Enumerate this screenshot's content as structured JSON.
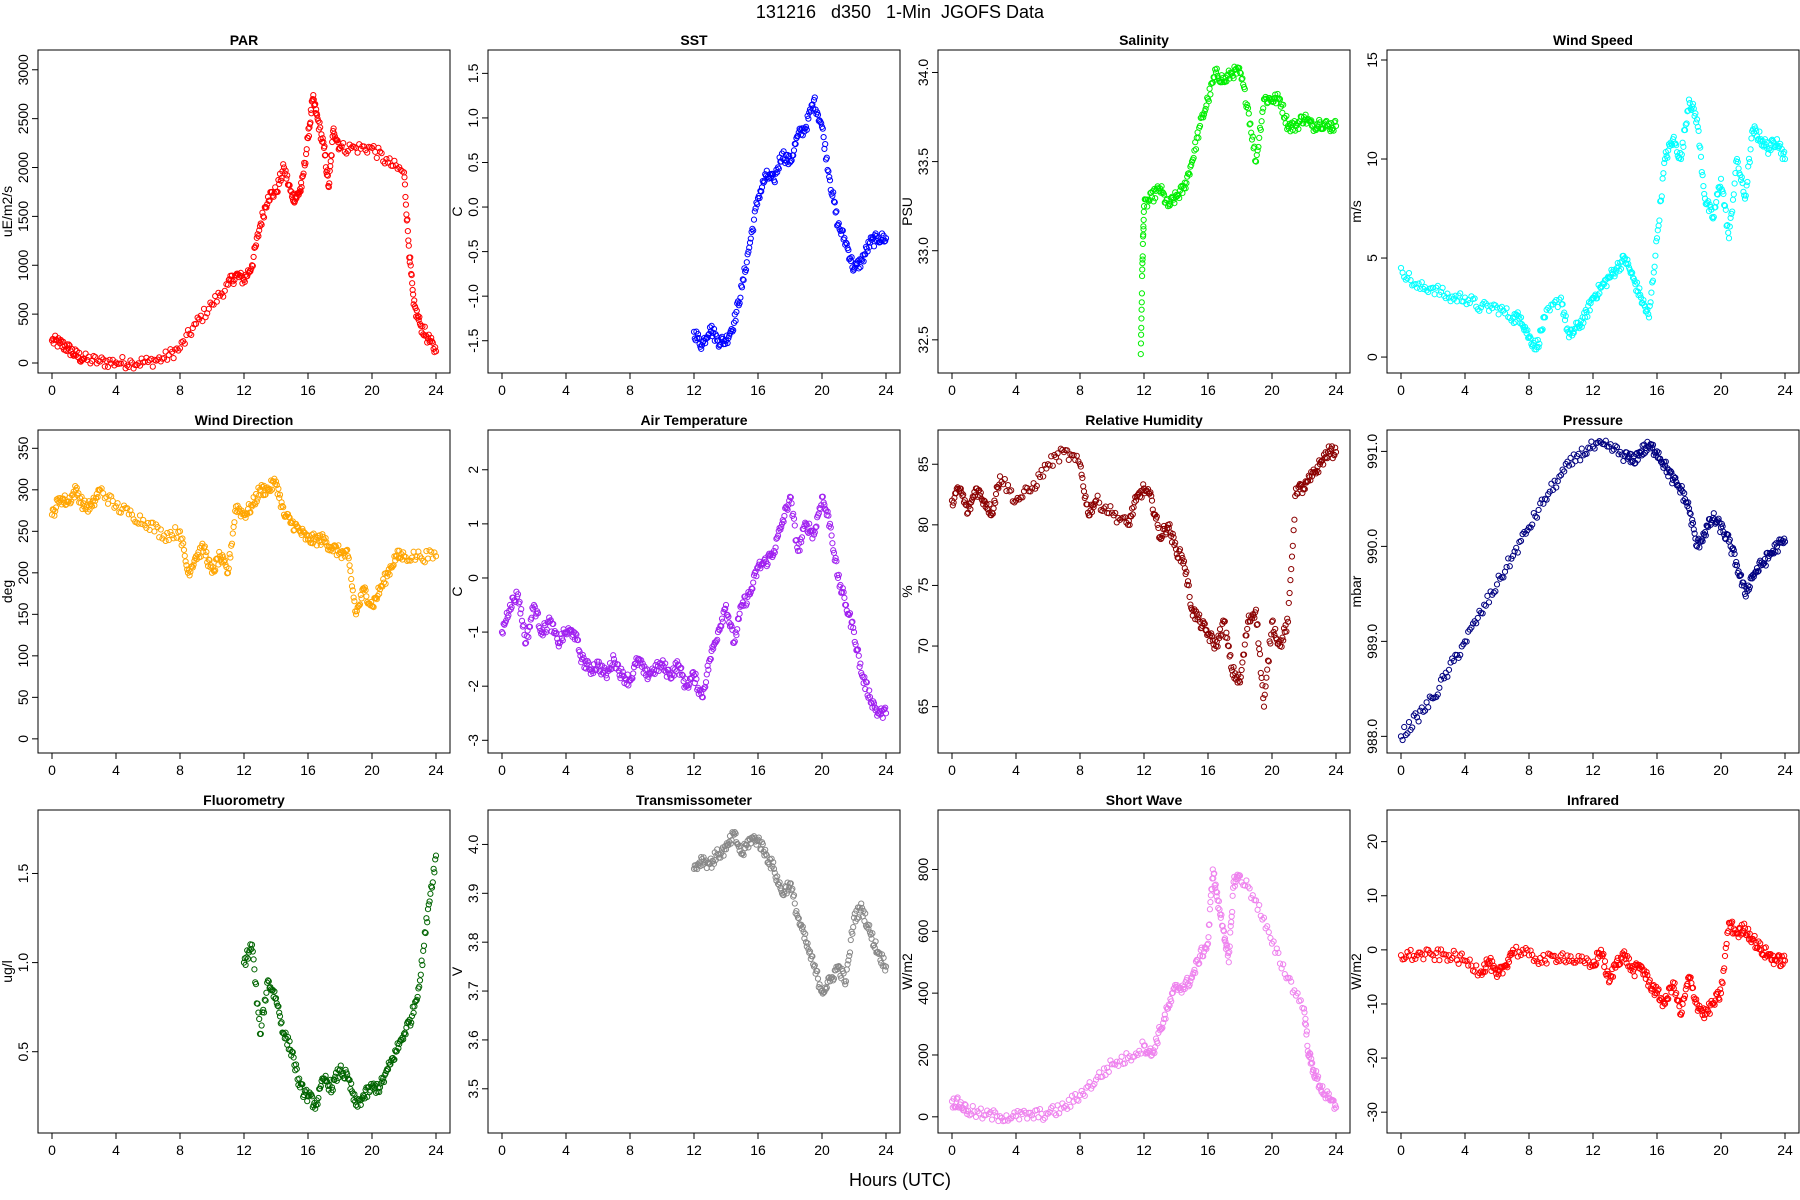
{
  "title": "131216   d350   1-Min  JGOFS Data",
  "xlabel": "Hours (UTC)",
  "x_ticks": [
    "0",
    "4",
    "8",
    "12",
    "16",
    "20",
    "24"
  ],
  "chart_data": [
    {
      "type": "scatter",
      "title": "PAR",
      "ylabel": "uE/m2/s",
      "color": "#ff0000",
      "xlim": [
        0,
        24
      ],
      "ylim": [
        0,
        3100
      ],
      "yticks": [
        0,
        500,
        1000,
        1500,
        2000,
        2500,
        3000
      ],
      "ytick_labels": [
        "0",
        "500",
        "1000",
        "1500",
        "2000",
        "2500",
        "3000"
      ],
      "x": [
        0,
        0.5,
        1,
        1.5,
        2,
        3,
        4,
        5,
        6,
        7,
        8,
        9,
        10,
        11,
        11.5,
        12,
        12.5,
        13,
        13.5,
        14,
        14.5,
        15,
        15.3,
        15.6,
        16,
        16.3,
        16.6,
        17,
        17.3,
        17.6,
        18,
        19,
        20,
        21,
        22,
        22.3,
        22.6,
        23,
        23.5,
        24
      ],
      "y": [
        230,
        200,
        150,
        80,
        40,
        15,
        5,
        5,
        10,
        50,
        150,
        400,
        600,
        800,
        900,
        850,
        1000,
        1400,
        1700,
        1750,
        2000,
        1700,
        1700,
        1800,
        2300,
        2700,
        2500,
        2200,
        1800,
        2400,
        2200,
        2200,
        2200,
        2050,
        1950,
        1200,
        600,
        400,
        250,
        120
      ]
    },
    {
      "type": "scatter",
      "title": "SST",
      "ylabel": "C",
      "color": "#0000ff",
      "xlim": [
        0,
        24
      ],
      "ylim": [
        -1.75,
        1.65
      ],
      "yticks": [
        -1.5,
        -1,
        -0.5,
        0,
        0.5,
        1,
        1.5
      ],
      "ytick_labels": [
        "-1.5",
        "-1.0",
        "-0.5",
        "0.0",
        "0.5",
        "1.0",
        "1.5"
      ],
      "x": [
        12,
        12.5,
        13,
        13.5,
        14,
        14.5,
        15,
        15.5,
        16,
        16.5,
        17,
        17.5,
        18,
        18.5,
        19,
        19.5,
        20,
        20.5,
        21,
        21.5,
        22,
        22.5,
        23,
        23.5,
        24
      ],
      "y": [
        -1.4,
        -1.55,
        -1.35,
        -1.5,
        -1.5,
        -1.3,
        -0.9,
        -0.4,
        0.1,
        0.35,
        0.3,
        0.6,
        0.5,
        0.8,
        0.9,
        1.2,
        0.9,
        0.3,
        -0.2,
        -0.4,
        -0.7,
        -0.6,
        -0.4,
        -0.35,
        -0.35
      ]
    },
    {
      "type": "scatter",
      "title": "Salinity",
      "ylabel": "PSU",
      "color": "#00ee00",
      "xlim": [
        0,
        24
      ],
      "ylim": [
        32.37,
        34.07
      ],
      "yticks": [
        32.5,
        33,
        33.5,
        34
      ],
      "ytick_labels": [
        "32.5",
        "33.0",
        "33.5",
        "34.0"
      ],
      "x": [
        11.8,
        11.9,
        12,
        12.5,
        13,
        13.5,
        14,
        14.5,
        15,
        15.5,
        16,
        16.5,
        17,
        17.5,
        18,
        18.5,
        19,
        19.5,
        20,
        20.5,
        21,
        21.5,
        22,
        22.5,
        23,
        23.5,
        24
      ],
      "y": [
        32.42,
        32.93,
        33.25,
        33.3,
        33.35,
        33.25,
        33.3,
        33.35,
        33.5,
        33.7,
        33.85,
        34.0,
        33.95,
        34.0,
        34.0,
        33.8,
        33.5,
        33.85,
        33.85,
        33.85,
        33.7,
        33.7,
        33.75,
        33.7,
        33.72,
        33.7,
        33.7
      ]
    },
    {
      "type": "scatter",
      "title": "Wind Speed",
      "ylabel": "m/s",
      "color": "#00ffff",
      "xlim": [
        0,
        24
      ],
      "ylim": [
        -0.3,
        15
      ],
      "yticks": [
        0,
        5,
        10,
        15
      ],
      "ytick_labels": [
        "0",
        "5",
        "10",
        "15"
      ],
      "x": [
        0,
        1,
        2,
        3,
        4,
        5,
        6,
        7,
        7.5,
        8,
        8.5,
        9,
        10,
        10.5,
        11,
        11.5,
        12,
        12.5,
        13,
        13.5,
        14,
        14.5,
        15,
        15.5,
        16,
        16.5,
        17,
        17.5,
        18,
        18.5,
        19,
        19.5,
        20,
        20.5,
        21,
        21.5,
        22,
        22.5,
        23,
        23.5,
        24
      ],
      "y": [
        4.5,
        3.5,
        3.5,
        3,
        3,
        2.5,
        2.5,
        2,
        2,
        1,
        0.5,
        2,
        3,
        1,
        1.5,
        2,
        3,
        3.5,
        4,
        4.5,
        5,
        4,
        3,
        2,
        6,
        10,
        11,
        10,
        13,
        12,
        8,
        7,
        9,
        6,
        10,
        8,
        11.5,
        11,
        10.5,
        11,
        10
      ]
    },
    {
      "type": "scatter",
      "title": "Wind Direction",
      "ylabel": "deg",
      "color": "#ffa500",
      "xlim": [
        0,
        24
      ],
      "ylim": [
        -5,
        360
      ],
      "yticks": [
        0,
        50,
        100,
        150,
        200,
        250,
        300,
        350
      ],
      "ytick_labels": [
        "0",
        "50",
        "100",
        "150",
        "200",
        "250",
        "300",
        "350"
      ],
      "x": [
        0,
        0.5,
        1,
        1.5,
        2,
        2.5,
        3,
        4,
        5,
        6,
        7,
        8,
        8.5,
        9,
        9.5,
        10,
        10.5,
        11,
        11.5,
        12,
        12.5,
        13,
        13.5,
        14,
        14.5,
        15,
        15.5,
        16,
        16.5,
        17,
        17.5,
        18,
        18.5,
        19,
        19.5,
        20,
        20.5,
        21,
        21.5,
        22,
        23,
        24
      ],
      "y": [
        270,
        290,
        285,
        300,
        280,
        280,
        300,
        280,
        270,
        260,
        245,
        250,
        200,
        220,
        230,
        200,
        220,
        200,
        280,
        270,
        280,
        300,
        300,
        310,
        270,
        260,
        250,
        240,
        240,
        240,
        230,
        225,
        220,
        150,
        180,
        160,
        180,
        200,
        220,
        220,
        220,
        220
      ]
    },
    {
      "type": "scatter",
      "title": "Air Temperature",
      "ylabel": "C",
      "color": "#a020f0",
      "xlim": [
        0,
        24
      ],
      "ylim": [
        -3.05,
        2.55
      ],
      "yticks": [
        -3,
        -2,
        -1,
        0,
        1,
        2
      ],
      "ytick_labels": [
        "-3",
        "-2",
        "-1",
        "0",
        "1",
        "2"
      ],
      "x": [
        0,
        0.5,
        1,
        1.5,
        2,
        2.5,
        3,
        3.5,
        4,
        4.5,
        5,
        5.5,
        6,
        6.5,
        7,
        7.5,
        8,
        8.5,
        9,
        9.5,
        10,
        10.5,
        11,
        11.5,
        12,
        12.5,
        13,
        13.5,
        14,
        14.5,
        15,
        15.5,
        16,
        16.5,
        17,
        17.5,
        18,
        18.5,
        19,
        19.5,
        20,
        20.5,
        21,
        21.5,
        22,
        22.5,
        23,
        23.5,
        24
      ],
      "y": [
        -1,
        -0.5,
        -0.3,
        -1.2,
        -0.5,
        -1,
        -0.8,
        -1.2,
        -1,
        -1,
        -1.5,
        -1.7,
        -1.6,
        -1.8,
        -1.5,
        -1.8,
        -1.9,
        -1.5,
        -1.8,
        -1.7,
        -1.6,
        -1.8,
        -1.6,
        -2,
        -1.8,
        -2.2,
        -1.5,
        -1,
        -0.5,
        -1.2,
        -0.5,
        -0.3,
        0.2,
        0.3,
        0.5,
        1,
        1.5,
        0.5,
        1,
        0.8,
        1.5,
        1,
        0,
        -0.5,
        -1,
        -1.8,
        -2.2,
        -2.5,
        -2.5
      ]
    },
    {
      "type": "scatter",
      "title": "Relative Humidity",
      "ylabel": "%",
      "color": "#8b0000",
      "xlim": [
        0,
        24
      ],
      "ylim": [
        62,
        87
      ],
      "yticks": [
        65,
        70,
        75,
        80,
        85
      ],
      "ytick_labels": [
        "65",
        "70",
        "75",
        "80",
        "85"
      ],
      "x": [
        0,
        0.5,
        1,
        1.5,
        2,
        2.5,
        3,
        4,
        5,
        6,
        7,
        8,
        8.5,
        9,
        10,
        11,
        11.5,
        12,
        12.5,
        13,
        13.5,
        14,
        14.5,
        15,
        15.5,
        16,
        16.5,
        17,
        17.5,
        18,
        18.5,
        19,
        19.5,
        20,
        20.5,
        21,
        21.5,
        22,
        22.5,
        23,
        23.5,
        24
      ],
      "y": [
        82,
        83,
        81,
        83,
        82,
        81,
        84,
        82,
        83,
        85,
        86,
        85,
        81,
        82,
        81,
        80,
        82,
        83,
        82,
        79,
        80,
        78,
        77,
        73,
        72,
        71,
        70,
        72,
        68,
        67,
        72,
        73,
        65,
        72,
        70,
        72,
        83,
        83,
        84,
        85,
        86,
        86
      ]
    },
    {
      "type": "scatter",
      "title": "Pressure",
      "ylabel": "mbar",
      "color": "#000080",
      "xlim": [
        0,
        24
      ],
      "ylim": [
        987.93,
        991.12
      ],
      "yticks": [
        988,
        989,
        990,
        991
      ],
      "ytick_labels": [
        "988.0",
        "989.0",
        "990.0",
        "991.0"
      ],
      "x": [
        0,
        1,
        2,
        3,
        4,
        5,
        6,
        7,
        8,
        9,
        10,
        11,
        12,
        13,
        14,
        14.5,
        15,
        15.5,
        16,
        16.5,
        17,
        17.5,
        18,
        18.5,
        19,
        19.5,
        20,
        20.5,
        21,
        21.5,
        22,
        22.5,
        23,
        23.5,
        24
      ],
      "y": [
        988.0,
        988.2,
        988.4,
        988.7,
        989.0,
        989.3,
        989.6,
        989.9,
        990.2,
        990.5,
        990.75,
        990.95,
        991.05,
        991.05,
        990.95,
        990.9,
        991.0,
        991.05,
        991.0,
        990.85,
        990.7,
        990.6,
        990.4,
        990.0,
        990.15,
        990.3,
        990.2,
        990.05,
        989.8,
        989.5,
        989.7,
        989.8,
        989.9,
        990.0,
        990.05
      ]
    },
    {
      "type": "scatter",
      "title": "Fluorometry",
      "ylabel": "ug/l",
      "color": "#006400",
      "xlim": [
        0,
        24
      ],
      "ylim": [
        0.1,
        1.8
      ],
      "yticks": [
        0.5,
        1.0,
        1.5
      ],
      "ytick_labels": [
        "0.5",
        "1.0",
        "1.5"
      ],
      "x": [
        12,
        12.5,
        13,
        13.5,
        14,
        14.5,
        15,
        15.5,
        16,
        16.5,
        17,
        17.5,
        18,
        18.5,
        19,
        19.5,
        20,
        20.5,
        21,
        21.5,
        22,
        22.5,
        23,
        23.5,
        24
      ],
      "y": [
        1.0,
        1.1,
        0.6,
        0.9,
        0.8,
        0.6,
        0.5,
        0.3,
        0.25,
        0.2,
        0.35,
        0.3,
        0.4,
        0.35,
        0.2,
        0.25,
        0.3,
        0.3,
        0.4,
        0.5,
        0.6,
        0.7,
        0.9,
        1.3,
        1.6
      ]
    },
    {
      "type": "scatter",
      "title": "Transmissometer",
      "ylabel": "V",
      "color": "#888888",
      "xlim": [
        0,
        24
      ],
      "ylim": [
        3.43,
        4.05
      ],
      "yticks": [
        3.5,
        3.6,
        3.7,
        3.8,
        3.9,
        4.0
      ],
      "ytick_labels": [
        "3.5",
        "3.6",
        "3.7",
        "3.8",
        "3.9",
        "4.0"
      ],
      "x": [
        12,
        12.5,
        13,
        13.5,
        14,
        14.5,
        15,
        15.5,
        16,
        16.5,
        17,
        17.5,
        18,
        18.5,
        19,
        19.5,
        20,
        20.5,
        21,
        21.5,
        22,
        22.5,
        23,
        23.5,
        24
      ],
      "y": [
        3.95,
        3.97,
        3.96,
        3.98,
        3.99,
        4.02,
        3.98,
        4.01,
        4.01,
        3.98,
        3.95,
        3.9,
        3.92,
        3.85,
        3.8,
        3.75,
        3.7,
        3.72,
        3.75,
        3.72,
        3.85,
        3.87,
        3.82,
        3.78,
        3.75
      ]
    },
    {
      "type": "scatter",
      "title": "Short Wave",
      "ylabel": "W/m2",
      "color": "#ee82ee",
      "xlim": [
        0,
        24
      ],
      "ylim": [
        -20,
        960
      ],
      "yticks": [
        0,
        200,
        400,
        600,
        800
      ],
      "ytick_labels": [
        "0",
        "200",
        "400",
        "600",
        "800"
      ],
      "x": [
        0,
        0.5,
        1,
        2,
        3,
        4,
        5,
        6,
        7,
        8,
        9,
        10,
        11,
        12,
        12.5,
        13,
        13.5,
        14,
        14.5,
        15,
        15.5,
        16,
        16.3,
        16.6,
        17,
        17.3,
        17.6,
        18,
        19,
        20,
        21,
        22,
        22.3,
        22.6,
        23,
        23.5,
        24
      ],
      "y": [
        50,
        40,
        20,
        5,
        2,
        2,
        5,
        10,
        30,
        70,
        120,
        170,
        190,
        230,
        200,
        280,
        350,
        420,
        420,
        450,
        520,
        560,
        800,
        700,
        600,
        500,
        760,
        780,
        700,
        560,
        450,
        350,
        200,
        150,
        100,
        60,
        30
      ]
    },
    {
      "type": "scatter",
      "title": "Infrared",
      "ylabel": "W/m2",
      "color": "#ff0000",
      "xlim": [
        0,
        24
      ],
      "ylim": [
        -32,
        24
      ],
      "yticks": [
        -30,
        -20,
        -10,
        0,
        10,
        20
      ],
      "ytick_labels": [
        "-30",
        "-20",
        "-10",
        "0",
        "10",
        "20"
      ],
      "x": [
        0,
        1,
        2,
        3,
        4,
        5,
        5.5,
        6,
        6.5,
        7,
        8,
        9,
        10,
        11,
        12,
        12.5,
        13,
        13.5,
        14,
        14.5,
        15,
        15.5,
        16,
        16.5,
        17,
        17.5,
        18,
        18.5,
        19,
        19.5,
        20,
        20.5,
        21,
        21.5,
        22,
        22.5,
        23,
        23.5,
        24
      ],
      "y": [
        -1,
        -1,
        -1,
        -1,
        -2,
        -4,
        -2,
        -5,
        -3,
        0,
        -1,
        -2,
        -1,
        -2,
        -3,
        0,
        -6,
        -2,
        -1,
        -4,
        -3,
        -6,
        -8,
        -10,
        -6,
        -12,
        -5,
        -10,
        -12,
        -10,
        -8,
        5,
        3,
        4,
        2,
        0,
        -1,
        -2,
        -2
      ]
    }
  ]
}
